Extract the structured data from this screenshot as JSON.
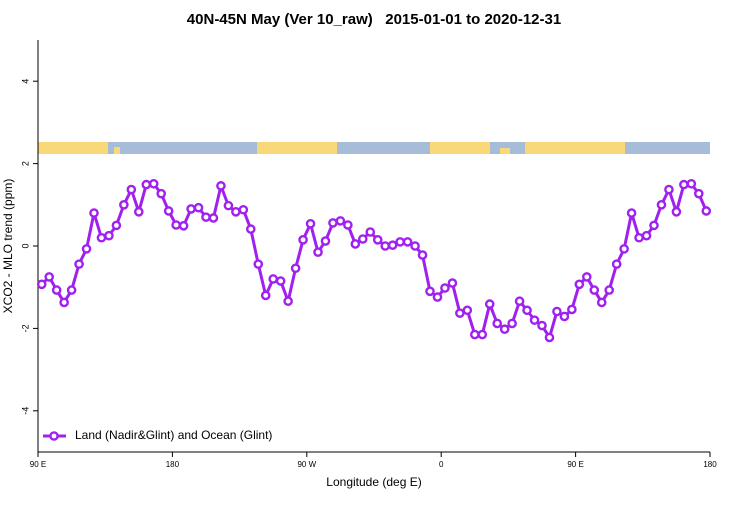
{
  "chart_data": {
    "type": "line",
    "title": "40N-45N May (Ver 10_raw)   2015-01-01 to 2020-12-31",
    "x_label": "Longitude (deg E)",
    "y_label": "XCO2 - MLO trend (ppm)",
    "x": [
      92.5,
      97.5,
      102.5,
      107.5,
      112.5,
      117.5,
      122.5,
      127.5,
      132.5,
      137.5,
      142.5,
      147.5,
      152.5,
      157.5,
      162.5,
      167.5,
      172.5,
      177.5,
      182.5,
      187.5,
      192.5,
      197.5,
      202.5,
      207.5,
      212.5,
      217.5,
      222.5,
      227.5,
      232.5,
      237.5,
      242.5,
      247.5,
      252.5,
      257.5,
      262.5,
      267.5,
      272.5,
      277.5,
      282.5,
      287.5,
      292.5,
      297.5,
      302.5,
      307.5,
      312.5,
      317.5,
      322.5,
      327.5,
      332.5,
      337.5,
      342.5,
      347.5,
      352.5,
      357.5,
      362.5,
      367.5,
      372.5,
      377.5,
      382.5,
      387.5,
      392.5,
      397.5,
      402.5,
      407.5,
      412.5,
      417.5,
      422.5,
      427.5,
      432.5,
      437.5,
      442.5,
      447.5,
      452.5,
      457.5,
      462.5,
      467.5,
      472.5,
      477.5,
      482.5,
      487.5,
      492.5,
      497.5,
      502.5,
      507.5,
      512.5,
      517.5,
      522.5,
      527.5,
      532.5,
      537.5
    ],
    "series": [
      {
        "name": "Land (Nadir&Glint) and Ocean (Glint)",
        "color": "#a020f0",
        "values": [
          -0.93,
          -0.75,
          -1.07,
          -1.37,
          -1.07,
          -0.44,
          -0.07,
          0.8,
          0.2,
          0.25,
          0.5,
          1.0,
          1.37,
          0.83,
          1.49,
          1.51,
          1.27,
          0.85,
          0.51,
          0.49,
          0.9,
          0.93,
          0.7,
          0.68,
          1.46,
          0.98,
          0.83,
          0.88,
          0.41,
          -0.44,
          -1.2,
          -0.8,
          -0.85,
          -1.34,
          -0.54,
          0.15,
          0.54,
          -0.15,
          0.12,
          0.56,
          0.61,
          0.51,
          0.05,
          0.17,
          0.34,
          0.15,
          0.0,
          0.02,
          0.1,
          0.1,
          0.0,
          -0.22,
          -1.1,
          -1.24,
          -1.02,
          -0.9,
          -1.63,
          -1.56,
          -2.15,
          -2.15,
          -1.41,
          -1.88,
          -2.02,
          -1.88,
          -1.34,
          -1.56,
          -1.8,
          -1.93,
          -2.22,
          -1.59,
          -1.71,
          -1.54,
          -0.93,
          -0.75,
          -1.07,
          -1.37,
          -1.07,
          -0.44,
          -0.07,
          0.8,
          0.2,
          0.25,
          0.5,
          1.0,
          1.37,
          0.83,
          1.49,
          1.51,
          1.27,
          0.85
        ]
      }
    ],
    "xlim": [
      90,
      540
    ],
    "xticks": [
      {
        "value": 90,
        "label": "90 E"
      },
      180,
      {
        "value": 270,
        "label": "90 W"
      },
      {
        "value": 360,
        "label": "0"
      },
      {
        "value": 450,
        "label": "90 E"
      },
      {
        "value": 540,
        "label": "180"
      }
    ],
    "ylim": [
      -5,
      5
    ],
    "yticks": [
      -4,
      -2,
      0,
      2,
      4
    ],
    "legend": "bottom-left"
  }
}
